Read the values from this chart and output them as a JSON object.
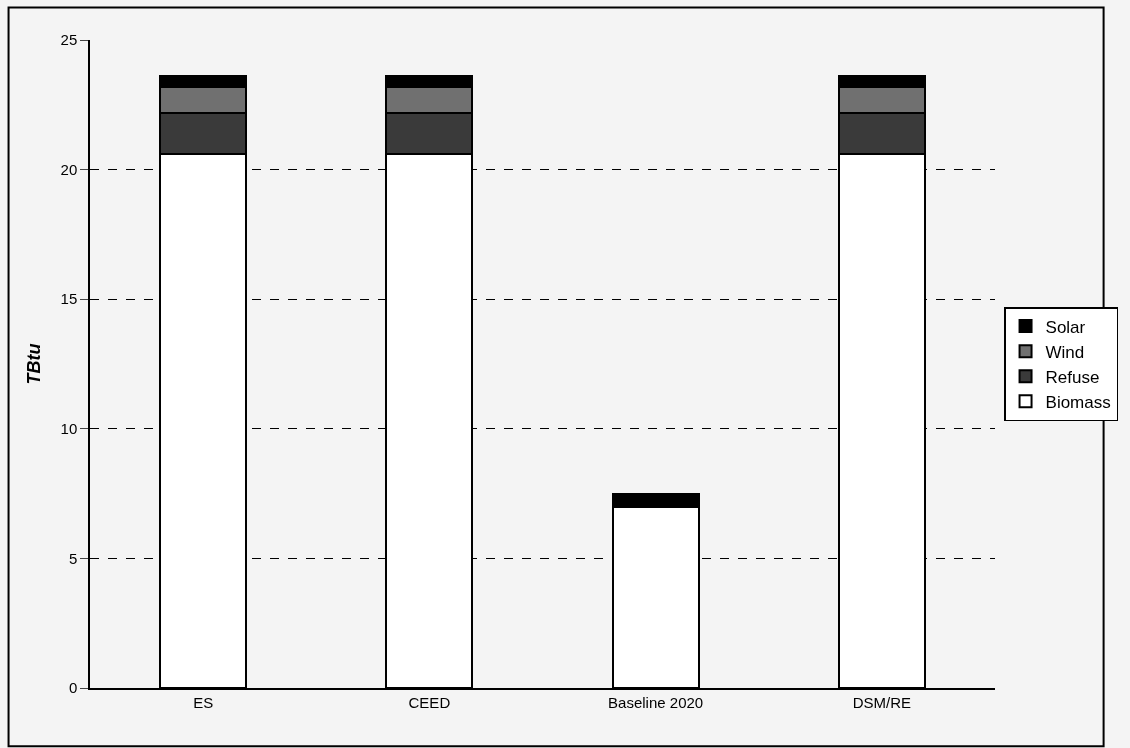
{
  "chart_data": {
    "type": "bar",
    "stacked": true,
    "ylabel": "TBtu",
    "categories": [
      "ES",
      "CEED",
      "Baseline 2020",
      "DSM/RE"
    ],
    "series": [
      {
        "name": "Biomass",
        "color": "#ffffff",
        "values": [
          20.6,
          20.6,
          7.0,
          20.6
        ]
      },
      {
        "name": "Refuse",
        "color": "#3a3a3a",
        "values": [
          1.6,
          1.6,
          0,
          1.6
        ]
      },
      {
        "name": "Wind",
        "color": "#707070",
        "values": [
          1.0,
          1.0,
          0,
          1.0
        ]
      },
      {
        "name": "Solar",
        "color": "#000000",
        "values": [
          0.4,
          0.4,
          0.5,
          0.4
        ]
      }
    ],
    "ylim": [
      0,
      25
    ],
    "yticks": [
      0,
      5,
      10,
      15,
      20,
      25
    ],
    "grid": "y",
    "line_style": "dashed",
    "legend": "right"
  }
}
